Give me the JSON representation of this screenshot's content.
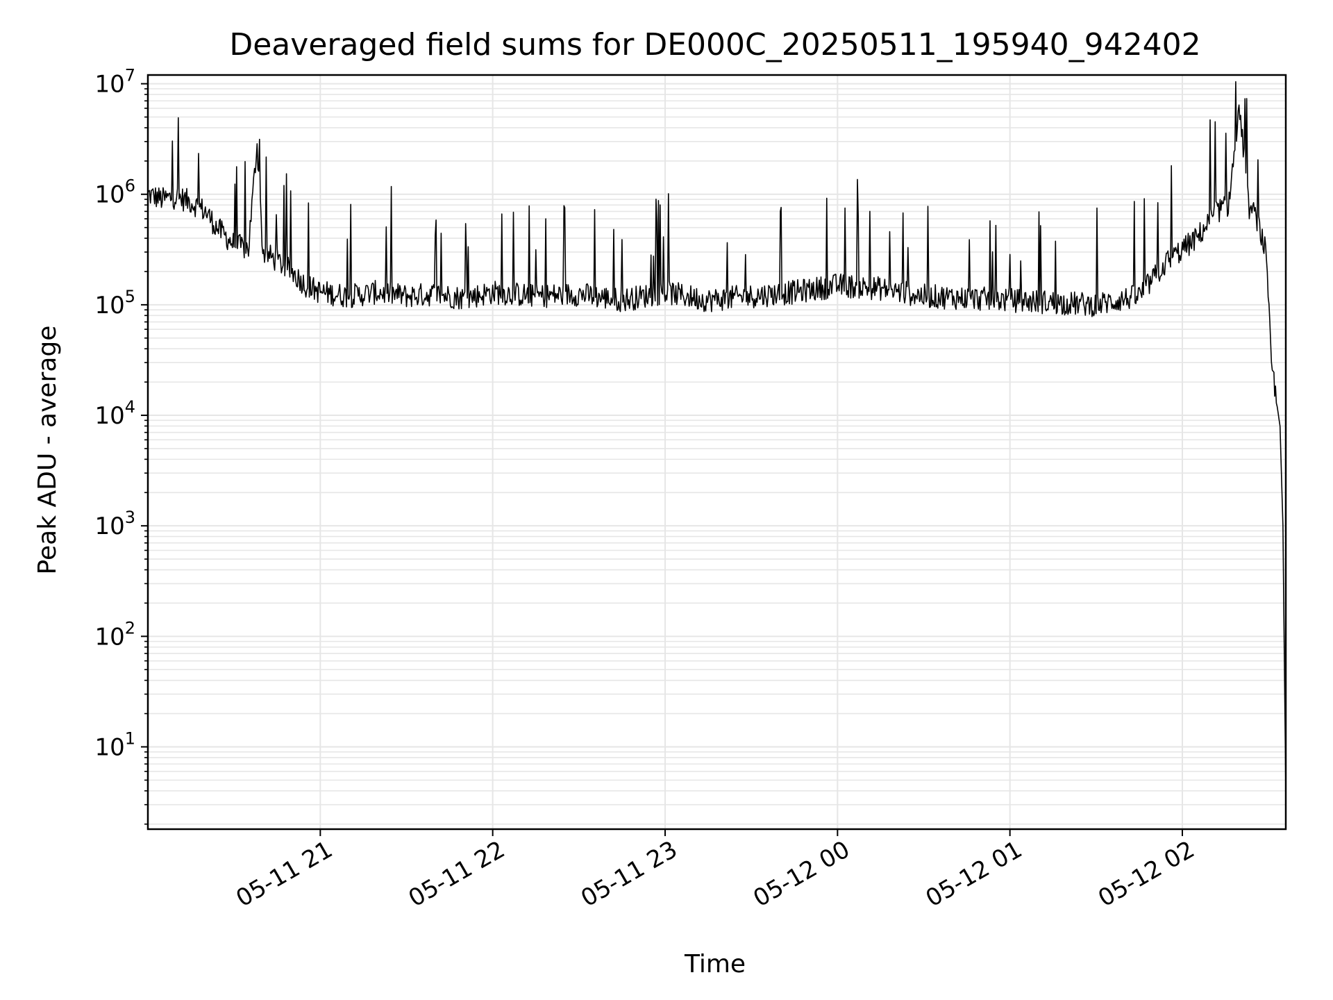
{
  "chart_data": {
    "type": "line",
    "title": "Deaveraged field sums for DE000C_20250511_195940_942402",
    "xlabel": "Time",
    "ylabel": "Peak ADU - average",
    "yscale": "log",
    "ylim": [
      1.8,
      12000000
    ],
    "xlim": [
      "2025-05-11 20:00",
      "2025-05-12 02:36"
    ],
    "grid": true,
    "series_color": "#000000",
    "grid_color": "#e6e6e6",
    "x_ticks": [
      {
        "value": "2025-05-11 21:00",
        "label": "05-11 21"
      },
      {
        "value": "2025-05-11 22:00",
        "label": "05-11 22"
      },
      {
        "value": "2025-05-11 23:00",
        "label": "05-11 23"
      },
      {
        "value": "2025-05-12 00:00",
        "label": "05-12 00"
      },
      {
        "value": "2025-05-12 01:00",
        "label": "05-12 01"
      },
      {
        "value": "2025-05-12 02:00",
        "label": "05-12 02"
      }
    ],
    "y_ticks": [
      {
        "value": 10,
        "base": "10",
        "exp": "1"
      },
      {
        "value": 100,
        "base": "10",
        "exp": "2"
      },
      {
        "value": 1000,
        "base": "10",
        "exp": "3"
      },
      {
        "value": 10000,
        "base": "10",
        "exp": "4"
      },
      {
        "value": 100000,
        "base": "10",
        "exp": "5"
      },
      {
        "value": 1000000,
        "base": "10",
        "exp": "6"
      },
      {
        "value": 10000000,
        "base": "10",
        "exp": "7"
      }
    ],
    "series": [
      {
        "x": [
          "2025-05-11 20:00",
          "2025-05-11 20:05",
          "2025-05-11 20:10",
          "2025-05-11 20:15",
          "2025-05-11 20:20",
          "2025-05-11 20:24",
          "2025-05-11 20:30",
          "2025-05-11 20:35",
          "2025-05-11 20:38",
          "2025-05-11 20:40",
          "2025-05-11 20:45",
          "2025-05-11 20:50",
          "2025-05-11 20:55",
          "2025-05-11 21:00",
          "2025-05-11 21:10",
          "2025-05-11 21:20",
          "2025-05-11 21:30",
          "2025-05-11 21:40",
          "2025-05-11 21:50",
          "2025-05-11 22:00",
          "2025-05-11 22:15",
          "2025-05-11 22:30",
          "2025-05-11 22:45",
          "2025-05-11 23:00",
          "2025-05-11 23:15",
          "2025-05-11 23:30",
          "2025-05-11 23:45",
          "2025-05-12 00:00",
          "2025-05-12 00:15",
          "2025-05-12 00:30",
          "2025-05-12 00:45",
          "2025-05-12 01:00",
          "2025-05-12 01:15",
          "2025-05-12 01:30",
          "2025-05-12 01:45",
          "2025-05-12 01:55",
          "2025-05-12 02:05",
          "2025-05-12 02:12",
          "2025-05-12 02:16",
          "2025-05-12 02:20",
          "2025-05-12 02:23",
          "2025-05-12 02:26",
          "2025-05-12 02:29",
          "2025-05-12 02:31",
          "2025-05-12 02:33",
          "2025-05-12 02:34",
          "2025-05-12 02:35",
          "2025-05-12 02:36"
        ],
        "y": [
          1000000,
          900000,
          950000,
          850000,
          700000,
          500000,
          350000,
          320000,
          2900000,
          300000,
          250000,
          200000,
          150000,
          130000,
          120000,
          130000,
          120000,
          125000,
          115000,
          130000,
          120000,
          125000,
          110000,
          130000,
          110000,
          120000,
          130000,
          150000,
          140000,
          120000,
          115000,
          110000,
          105000,
          100000,
          120000,
          250000,
          400000,
          700000,
          800000,
          6000000,
          780000,
          600000,
          300000,
          30000,
          12000,
          8000,
          1000,
          4
        ]
      }
    ]
  }
}
